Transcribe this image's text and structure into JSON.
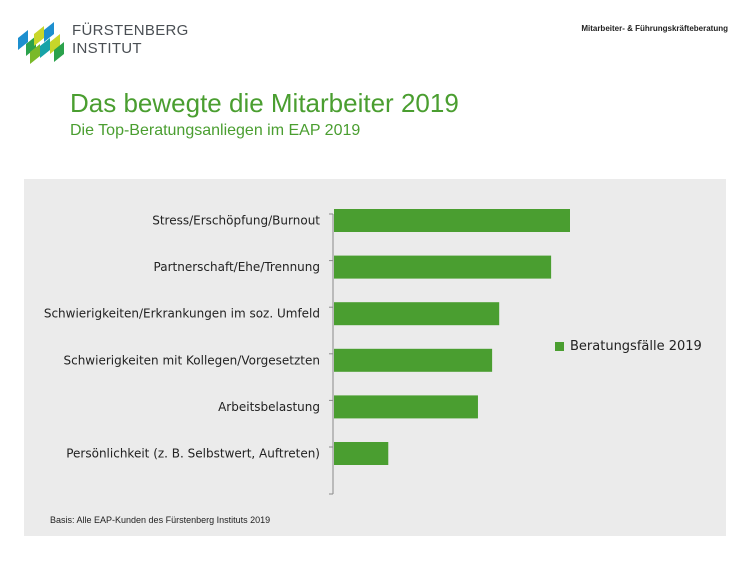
{
  "header": {
    "logo_line1": "FÜRSTENBERG",
    "logo_line2": "INSTITUT",
    "tagline": "Mitarbeiter- & Führungskräfteberatung"
  },
  "title": "Das bewegte die Mitarbeiter 2019",
  "subtitle": "Die Top-Beratungsanliegen im EAP 2019",
  "footnote": "Basis: Alle EAP-Kunden des Fürstenberg Instituts 2019",
  "colors": {
    "accent": "#4a9e30",
    "panel": "#ebebeb"
  },
  "chart_data": {
    "type": "bar",
    "orientation": "horizontal",
    "categories": [
      "Stress/Erschöpfung/Burnout",
      "Partnerschaft/Ehe/Trennung",
      "Schwierigkeiten/Erkrankungen im soz. Umfeld",
      "Schwierigkeiten mit Kollegen/Vorgesetzten",
      "Arbeitsbelastung",
      "Persönlichkeit (z. B. Selbstwert, Auftreten)"
    ],
    "series": [
      {
        "name": "Beratungsfälle 2019",
        "values": [
          100,
          92,
          70,
          67,
          61,
          23
        ],
        "color": "#4a9e30"
      }
    ],
    "xlim": [
      0,
      100
    ],
    "grid": false,
    "legend": "right"
  }
}
